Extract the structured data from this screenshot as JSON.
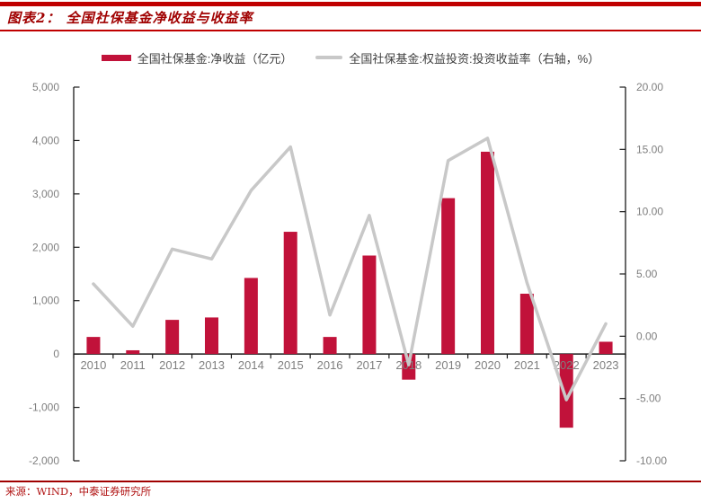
{
  "header": {
    "title": "图表2： 全国社保基金净收益与收益率"
  },
  "legend": [
    {
      "label": "全国社保基金:净收益（亿元）",
      "swatch": "bar",
      "color": "#C1123A"
    },
    {
      "label": "全国社保基金:权益投资:投资收益率（右轴，%）",
      "swatch": "line",
      "color": "#C8C8C8"
    }
  ],
  "footer": {
    "source": "来源：WIND，中泰证券研究所"
  },
  "colors": {
    "bar": "#C1123A",
    "line": "#C8C8C8",
    "axis_line": "#1A1A1A",
    "axis_text": "#7F7F7F",
    "legend_text": "#404040",
    "title_text": "#A00000",
    "rule_red": "#C00000",
    "source_text": "#B01212"
  },
  "chart_data": {
    "type": "bar",
    "title": "全国社保基金净收益与收益率",
    "categories": [
      "2010",
      "2011",
      "2012",
      "2013",
      "2014",
      "2015",
      "2016",
      "2017",
      "2018",
      "2019",
      "2020",
      "2021",
      "2022",
      "2023"
    ],
    "series": [
      {
        "name": "全国社保基金:净收益（亿元）",
        "type": "bar",
        "axis": "left",
        "values": [
          320,
          70,
          640,
          685,
          1425,
          2290,
          320,
          1845,
          -480,
          2920,
          3790,
          1130,
          -1380,
          230
        ]
      },
      {
        "name": "全国社保基金:权益投资:投资收益率（右轴，%）",
        "type": "line",
        "axis": "right",
        "values": [
          4.2,
          0.8,
          7.0,
          6.2,
          11.7,
          15.2,
          1.7,
          9.7,
          -2.3,
          14.1,
          15.9,
          4.3,
          -5.1,
          1.0
        ]
      }
    ],
    "y_left": {
      "min": -2000,
      "max": 5000,
      "step": 1000,
      "tick_labels": [
        "5,000",
        "4,000",
        "3,000",
        "2,000",
        "1,000",
        "0",
        "-1,000",
        "-2,000"
      ]
    },
    "y_right": {
      "min": -10,
      "max": 20,
      "step": 5,
      "tick_labels": [
        "20.00",
        "15.00",
        "10.00",
        "5.00",
        "0.00",
        "-5.00",
        "-10.00"
      ]
    },
    "xlabel": "",
    "ylabel": "",
    "grid": false,
    "legend_position": "top"
  }
}
